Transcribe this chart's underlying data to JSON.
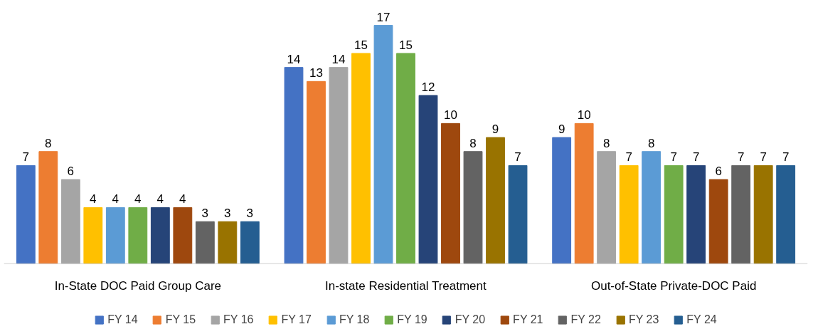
{
  "chart_data": {
    "type": "bar",
    "categories": [
      "In-State DOC Paid Group Care",
      "In-state Residential Treatment",
      "Out-of-State Private-DOC Paid"
    ],
    "series": [
      {
        "name": "FY 14",
        "color": "#4472c4",
        "values": [
          7,
          14,
          9
        ]
      },
      {
        "name": "FY 15",
        "color": "#ed7d31",
        "values": [
          8,
          13,
          10
        ]
      },
      {
        "name": "FY 16",
        "color": "#a5a5a5",
        "values": [
          6,
          14,
          8
        ]
      },
      {
        "name": "FY 17",
        "color": "#ffc000",
        "values": [
          4,
          15,
          7
        ]
      },
      {
        "name": "FY 18",
        "color": "#5b9bd5",
        "values": [
          4,
          17,
          8
        ]
      },
      {
        "name": "FY 19",
        "color": "#70ad47",
        "values": [
          4,
          15,
          7
        ]
      },
      {
        "name": "FY 20",
        "color": "#264478",
        "values": [
          4,
          12,
          7
        ]
      },
      {
        "name": "FY 21",
        "color": "#9e480e",
        "values": [
          4,
          10,
          6
        ]
      },
      {
        "name": "FY 22",
        "color": "#636363",
        "values": [
          3,
          8,
          7
        ]
      },
      {
        "name": "FY 23",
        "color": "#997300",
        "values": [
          3,
          9,
          7
        ]
      },
      {
        "name": "FY 24",
        "color": "#255e91",
        "values": [
          3,
          7,
          7
        ]
      }
    ],
    "data_labels": true,
    "legend": "bottom",
    "tick_labels": "x"
  }
}
